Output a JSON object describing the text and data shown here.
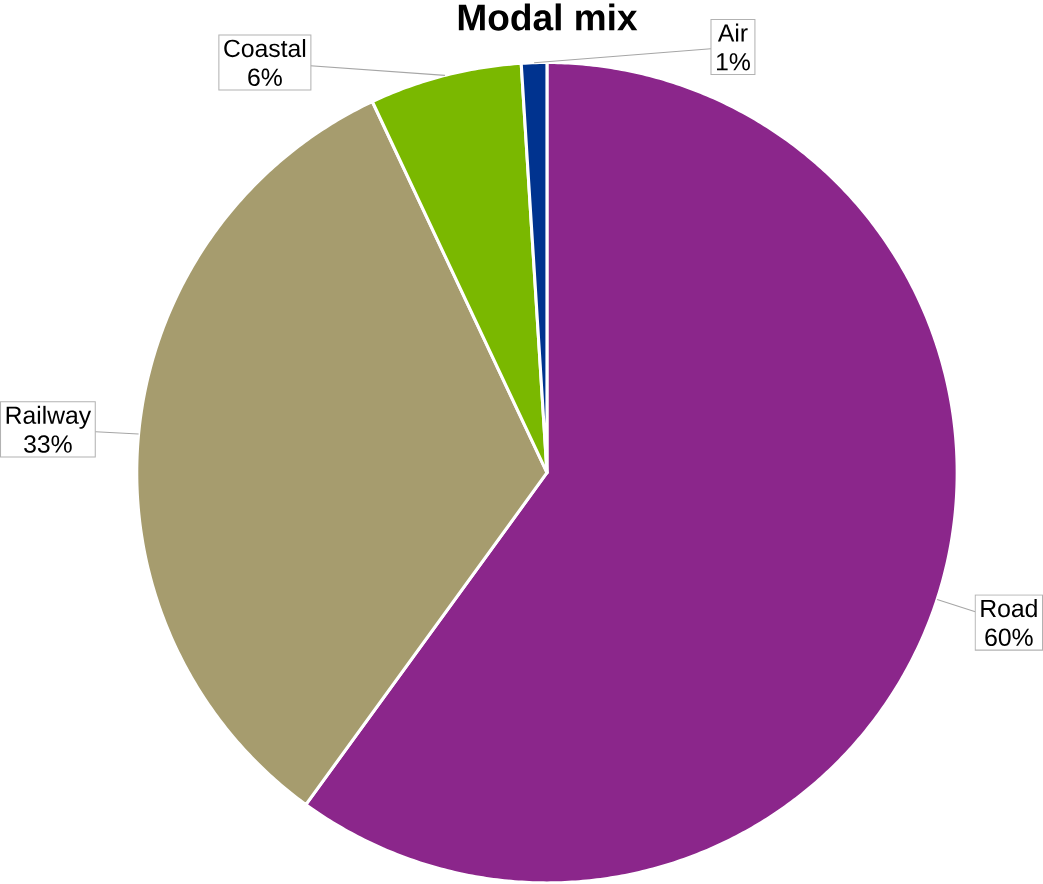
{
  "chart_data": {
    "type": "pie",
    "title": "Modal mix",
    "categories": [
      "Road",
      "Railway",
      "Coastal",
      "Air"
    ],
    "values": [
      60,
      33,
      6,
      1
    ],
    "value_labels": [
      "60%",
      "33%",
      "6%",
      "1%"
    ],
    "colors": [
      "#8b268b",
      "#a69c6e",
      "#7ab800",
      "#00338f"
    ]
  }
}
